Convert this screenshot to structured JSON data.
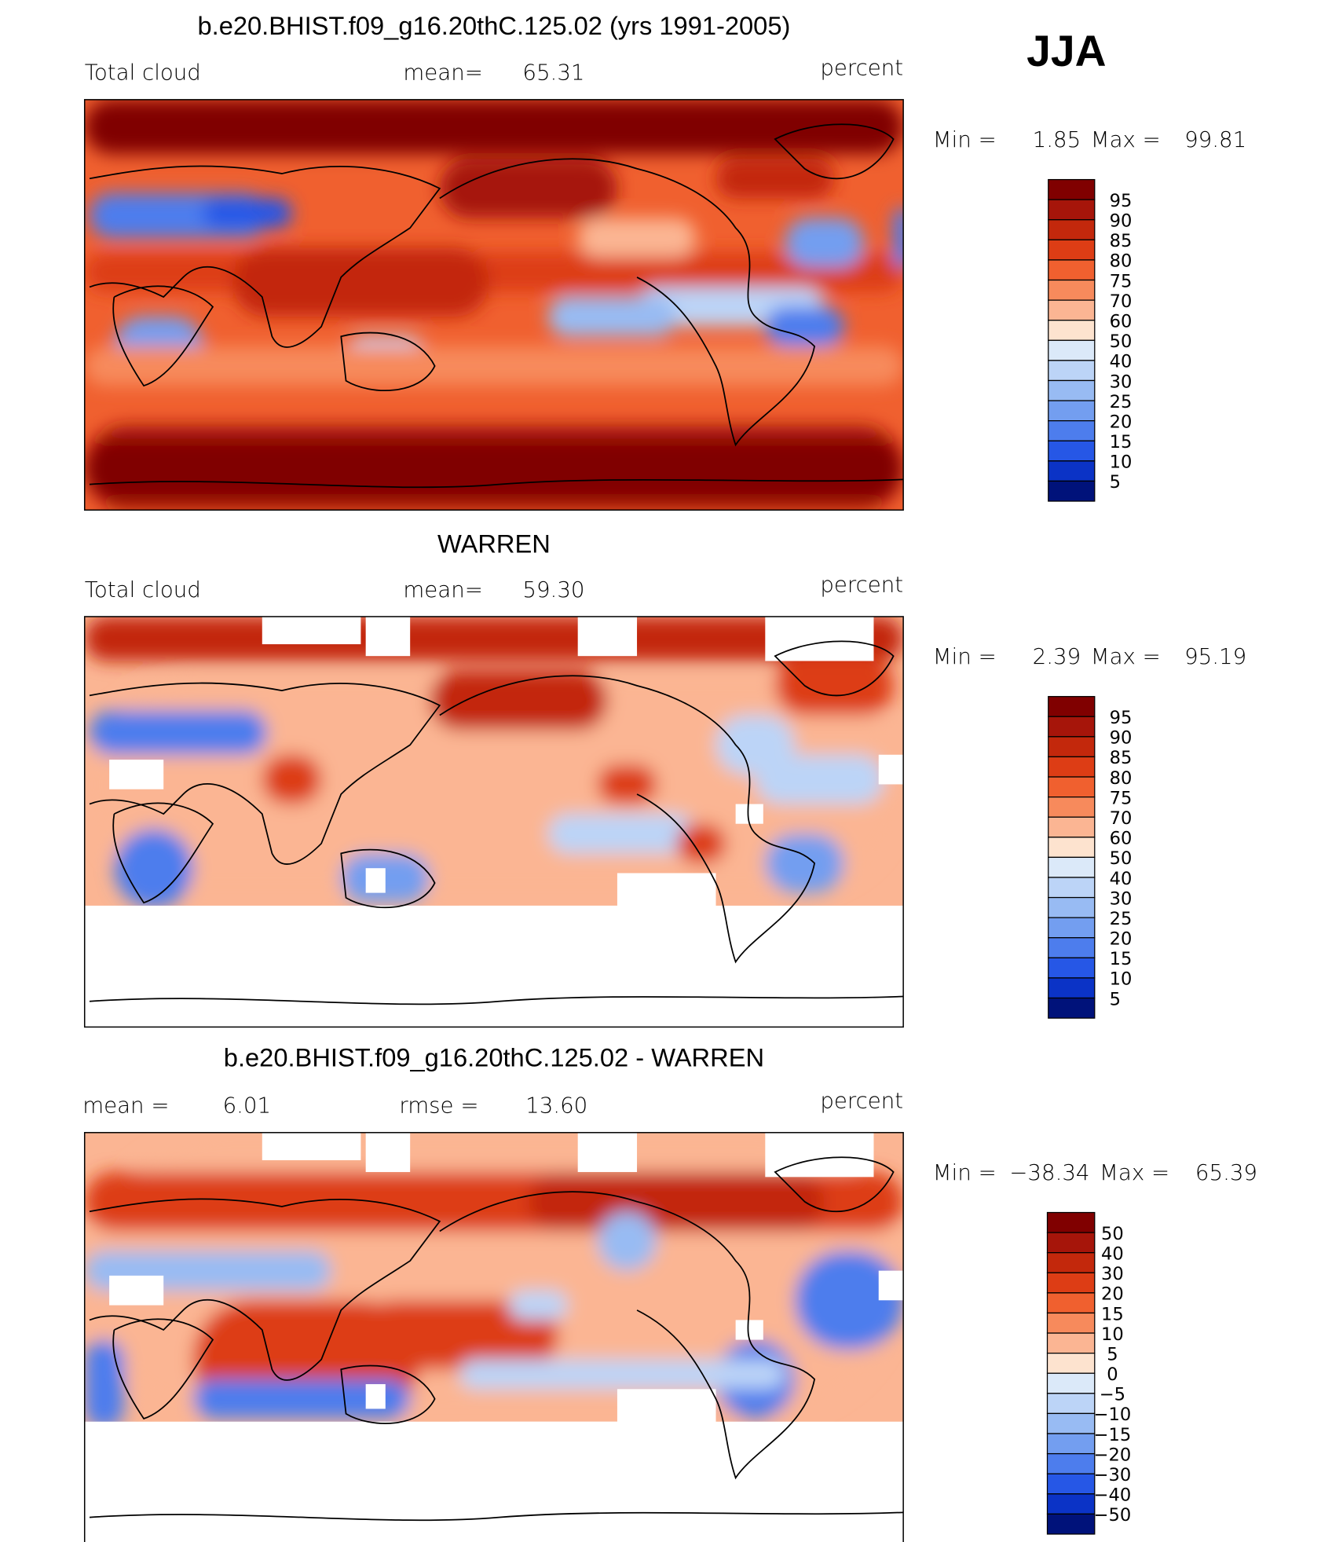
{
  "season": "JJA",
  "panels": [
    {
      "title": "b.e20.BHIST.f09_g16.20thC.125.02 (yrs 1991-2005)",
      "left_label": "Total cloud",
      "stat1_label": "mean=",
      "stat1": "65.31",
      "units": "percent",
      "min_label": "Min =",
      "min": "1.85",
      "max_label": "Max =",
      "max": "99.81",
      "colorbar_labels": [
        "95",
        "90",
        "85",
        "80",
        "75",
        "70",
        "60",
        "50",
        "40",
        "30",
        "25",
        "20",
        "15",
        "10",
        "5"
      ]
    },
    {
      "title": "WARREN",
      "left_label": "Total cloud",
      "stat1_label": "mean=",
      "stat1": "59.30",
      "units": "percent",
      "min_label": "Min =",
      "min": "2.39",
      "max_label": "Max =",
      "max": "95.19",
      "colorbar_labels": [
        "95",
        "90",
        "85",
        "80",
        "75",
        "70",
        "60",
        "50",
        "40",
        "30",
        "25",
        "20",
        "15",
        "10",
        "5"
      ]
    },
    {
      "title": "b.e20.BHIST.f09_g16.20thC.125.02 - WARREN",
      "stat1_label": "mean =",
      "stat1": "6.01",
      "stat2_label": "rmse =",
      "stat2": "13.60",
      "units": "percent",
      "min_label": "Min =",
      "min": "−38.34",
      "max_label": "Max =",
      "max": "65.39",
      "colorbar_labels": [
        "50",
        "40",
        "30",
        "20",
        "15",
        "10",
        "5",
        "0",
        "−5",
        "−10",
        "−15",
        "−20",
        "−30",
        "−40",
        "−50"
      ]
    }
  ],
  "colorbar_colors": [
    "#800000",
    "#a6150a",
    "#c3280c",
    "#dd3d15",
    "#f0602f",
    "#f78a5c",
    "#fbb593",
    "#fde3cf",
    "#dbe9f9",
    "#bcd4f7",
    "#98bbf3",
    "#739ef0",
    "#4d7ded",
    "#2657e6",
    "#0b33c6",
    "#00127a"
  ]
}
